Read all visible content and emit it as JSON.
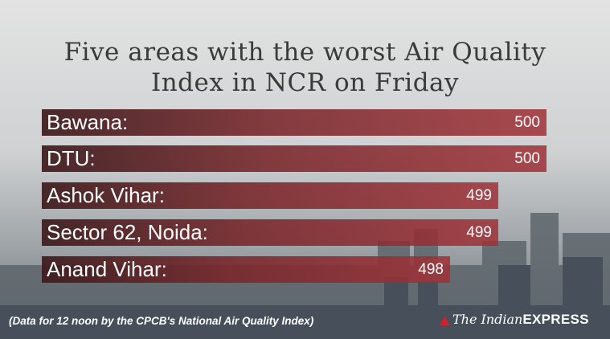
{
  "chart_data": {
    "type": "bar",
    "title_line1": "Five areas with the worst Air Quality",
    "title_line2": "Index in NCR on Friday",
    "categories": [
      "Bawana:",
      "DTU:",
      "Ashok Vihar:",
      "Sector 62, Noida:",
      "Anand Vihar:"
    ],
    "values": [
      500,
      500,
      499,
      499,
      498
    ],
    "value_labels": [
      "500",
      "500",
      "499",
      "499",
      "498"
    ],
    "bar_color": "#8a2c30"
  },
  "footer": {
    "note": "(Data for 12 noon by the CPCB's National Air Quality Index)",
    "logo_the_indian": "The Indian",
    "logo_express": "EXPRESS"
  }
}
